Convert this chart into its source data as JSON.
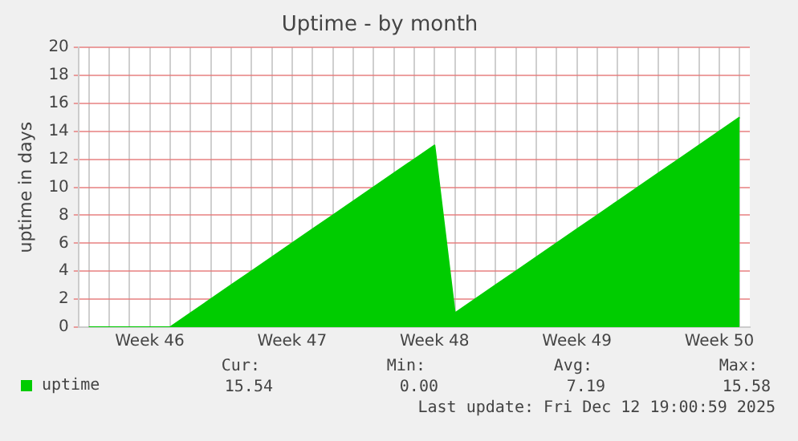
{
  "chart_data": {
    "type": "area",
    "title": "Uptime - by month",
    "ylabel": "uptime in days",
    "categories": [
      null,
      null,
      null,
      "Week 46",
      null,
      null,
      null,
      null,
      null,
      null,
      "Week 47",
      null,
      null,
      null,
      null,
      null,
      null,
      "Week 48",
      null,
      null,
      null,
      null,
      null,
      null,
      "Week 49",
      null,
      null,
      null,
      null,
      null,
      null,
      "Week 50",
      null
    ],
    "series": [
      {
        "name": "uptime",
        "color": "#00cc00",
        "values": [
          0,
          0,
          0,
          0,
          0,
          1,
          2,
          3,
          4,
          5,
          6,
          7,
          8,
          9,
          10,
          11,
          12,
          13,
          1,
          2,
          3,
          4,
          5,
          6,
          7,
          8,
          9,
          10,
          11,
          12,
          13,
          14,
          15
        ]
      }
    ],
    "ylim": [
      0,
      20
    ],
    "yticks": [
      0,
      2,
      4,
      6,
      8,
      10,
      12,
      14,
      16,
      18,
      20
    ],
    "grid": true,
    "legend": "bottom left",
    "annotations": [
      "Cur:",
      "Min:",
      "Avg:",
      "Max:",
      "15.54",
      "0.00",
      "7.19",
      "15.58",
      "Last update: Fri Dec 12 19:00:59 2025"
    ]
  }
}
